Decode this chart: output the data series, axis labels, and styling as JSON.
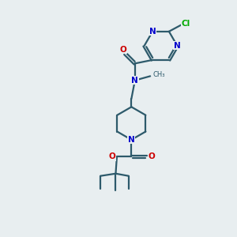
{
  "background_color": "#e8eef0",
  "bond_color": "#2d5a6b",
  "nitrogen_color": "#0000cc",
  "oxygen_color": "#cc0000",
  "chlorine_color": "#00aa00",
  "line_width": 1.6,
  "fig_width": 3.0,
  "fig_height": 3.0,
  "dpi": 100,
  "xlim": [
    0,
    10
  ],
  "ylim": [
    0,
    10
  ]
}
